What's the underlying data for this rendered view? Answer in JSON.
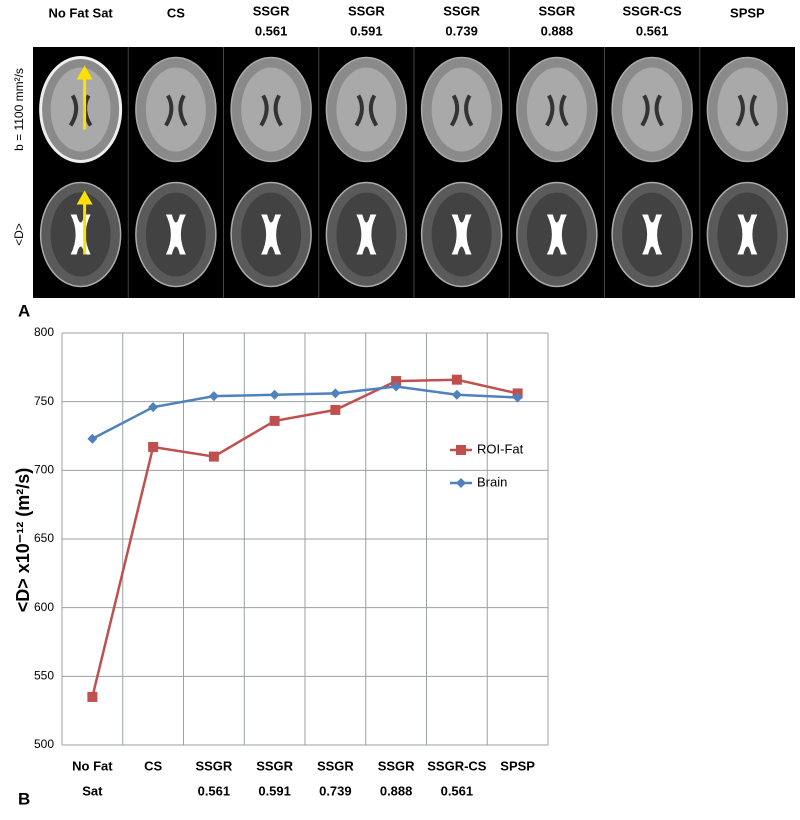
{
  "panel_a": {
    "label": "A",
    "columns": [
      [
        "No Fat Sat"
      ],
      [
        "CS"
      ],
      [
        "SSGR",
        "0.561"
      ],
      [
        "SSGR",
        "0.591"
      ],
      [
        "SSGR",
        "0.739"
      ],
      [
        "SSGR",
        "0.888"
      ],
      [
        "SSGR-CS",
        "0.561"
      ],
      [
        "SPSP"
      ]
    ],
    "rows": [
      "b = 1100 mm²/s",
      "<D>"
    ]
  },
  "panel_b_label": "B",
  "chart_data": {
    "type": "line",
    "y_label": "<D> x10⁻¹² (m²/s)",
    "categories": [
      [
        "No Fat",
        "Sat"
      ],
      [
        "CS"
      ],
      [
        "SSGR",
        "0.561"
      ],
      [
        "SSGR",
        "0.591"
      ],
      [
        "SSGR",
        "0.739"
      ],
      [
        "SSGR",
        "0.888"
      ],
      [
        "SSGR-CS",
        "0.561"
      ],
      [
        "SPSP"
      ]
    ],
    "series": [
      {
        "name": "ROI-Fat",
        "color": "#c0504d",
        "marker": "square",
        "values": [
          535,
          717,
          710,
          736,
          744,
          765,
          766,
          756
        ]
      },
      {
        "name": "Brain",
        "color": "#4f81bd",
        "marker": "diamond",
        "values": [
          723,
          746,
          754,
          755,
          756,
          761,
          755,
          753
        ]
      }
    ],
    "ylim": [
      500,
      800
    ],
    "yticks": [
      500,
      550,
      600,
      650,
      700,
      750,
      800
    ],
    "grid": true,
    "legend": "right"
  }
}
